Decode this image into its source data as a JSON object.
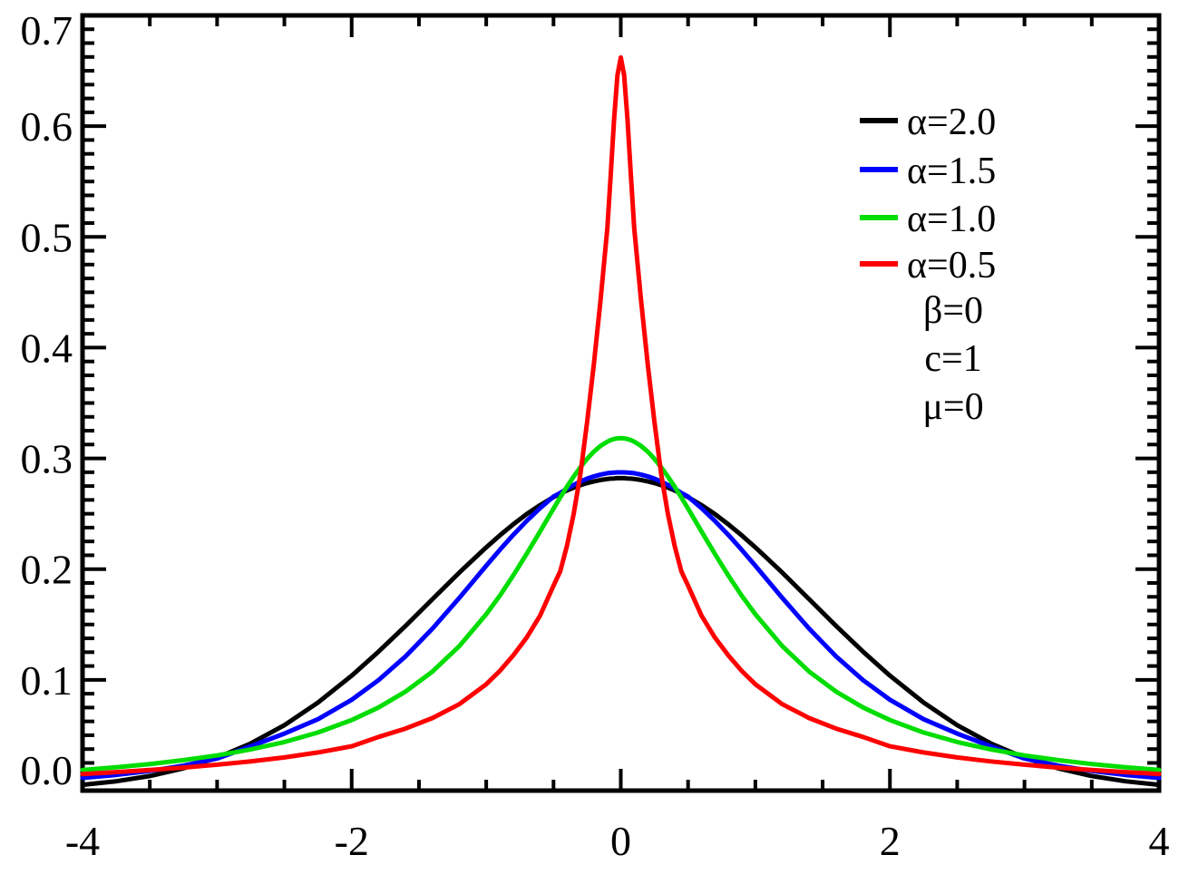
{
  "chart_data": {
    "type": "line",
    "title": "",
    "xlabel": "",
    "ylabel": "",
    "xlim": [
      -4,
      4
    ],
    "ylim": [
      0,
      0.7
    ],
    "grid": "off",
    "legend_position": "upper-right",
    "x_major_ticks": [
      -4,
      -2,
      0,
      2,
      4
    ],
    "x_tick_labels": [
      "-4",
      "-2",
      "0",
      "2",
      "4"
    ],
    "x_minor_step": 0.5,
    "y_major_ticks": [
      0,
      0.1,
      0.2,
      0.3,
      0.4,
      0.5,
      0.6,
      0.7
    ],
    "y_tick_labels": [
      "0.0",
      "0.1",
      "0.2",
      "0.3",
      "0.4",
      "0.5",
      "0.6",
      "0.7"
    ],
    "y_minor_step": 0.0125,
    "symmetric": true,
    "x_half_grid": [
      0,
      0.025,
      0.05,
      0.075,
      0.1,
      0.15,
      0.2,
      0.25,
      0.3,
      0.35,
      0.4,
      0.45,
      0.5,
      0.6,
      0.7,
      0.8,
      0.9,
      1.0,
      1.2,
      1.4,
      1.6,
      1.8,
      2.0,
      2.25,
      2.5,
      2.75,
      3.0,
      3.25,
      3.5,
      3.75,
      4.0
    ],
    "series": [
      {
        "label": "α=2.0",
        "color": "#000000",
        "values": [
          0.2821,
          0.2821,
          0.2819,
          0.2817,
          0.2814,
          0.2805,
          0.2793,
          0.2777,
          0.2758,
          0.2736,
          0.271,
          0.2682,
          0.265,
          0.2578,
          0.2496,
          0.2404,
          0.2304,
          0.2197,
          0.1968,
          0.1728,
          0.1487,
          0.1255,
          0.1038,
          0.0796,
          0.0591,
          0.0426,
          0.0297,
          0.0201,
          0.0132,
          0.0084,
          0.0052
        ]
      },
      {
        "label": "α=1.5",
        "color": "#0000ff",
        "values": [
          0.2874,
          0.2874,
          0.2872,
          0.287,
          0.2866,
          0.2854,
          0.2838,
          0.2817,
          0.2791,
          0.2761,
          0.2726,
          0.2688,
          0.2655,
          0.255,
          0.2434,
          0.2308,
          0.2173,
          0.203,
          0.174,
          0.1462,
          0.1212,
          0.0998,
          0.082,
          0.0645,
          0.0515,
          0.04,
          0.029,
          0.0225,
          0.0178,
          0.0142,
          0.0115
        ]
      },
      {
        "label": "α=1.0",
        "color": "#00dd00",
        "values": [
          0.3183,
          0.3181,
          0.3175,
          0.3165,
          0.3151,
          0.3113,
          0.3061,
          0.2996,
          0.292,
          0.2836,
          0.2744,
          0.2647,
          0.2546,
          0.234,
          0.2136,
          0.1941,
          0.1759,
          0.1592,
          0.1304,
          0.1075,
          0.0894,
          0.0751,
          0.0637,
          0.0525,
          0.0439,
          0.0372,
          0.0318,
          0.0275,
          0.024,
          0.0211,
          0.0187
        ]
      },
      {
        "label": "α=0.5",
        "color": "#ff0000",
        "values": [
          0.662,
          0.646,
          0.606,
          0.556,
          0.508,
          0.443,
          0.385,
          0.333,
          0.286,
          0.25,
          0.221,
          0.198,
          0.185,
          0.158,
          0.138,
          0.122,
          0.108,
          0.096,
          0.078,
          0.0655,
          0.056,
          0.0485,
          0.04,
          0.0345,
          0.03,
          0.0264,
          0.0234,
          0.0208,
          0.0186,
          0.0167,
          0.015
        ]
      }
    ],
    "annotations": [
      "β=0",
      "c=1",
      "μ=0"
    ]
  }
}
